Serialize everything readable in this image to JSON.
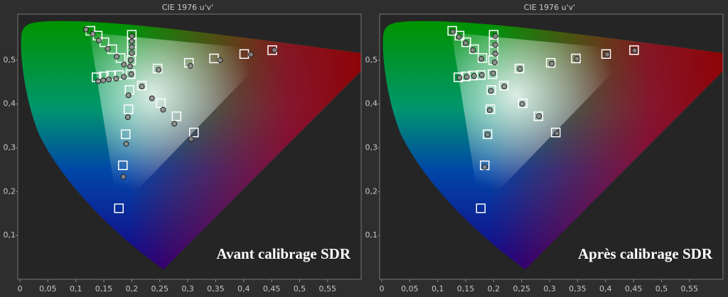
{
  "chart_data": [
    {
      "type": "scatter",
      "title": "CIE 1976 u'v'",
      "annotation": "Avant calibrage SDR",
      "xlim": [
        0,
        0.61
      ],
      "ylim": [
        0,
        0.605
      ],
      "xticks": [
        0,
        {
          "value": 0.05,
          "label": "0,05"
        },
        {
          "value": 0.1,
          "label": "0,1"
        },
        {
          "value": 0.15,
          "label": "0,15"
        },
        {
          "value": 0.2,
          "label": "0,2"
        },
        {
          "value": 0.25,
          "label": "0,25"
        },
        {
          "value": 0.3,
          "label": "0,3"
        },
        {
          "value": 0.35,
          "label": "0,35"
        },
        {
          "value": 0.4,
          "label": "0,4"
        },
        {
          "value": 0.45,
          "label": "0,45"
        },
        {
          "value": 0.5,
          "label": "0,5"
        },
        {
          "value": 0.55,
          "label": "0,55"
        }
      ],
      "yticks": [
        {
          "value": 0.1,
          "label": "0,1"
        },
        {
          "value": 0.2,
          "label": "0,2"
        },
        {
          "value": 0.3,
          "label": "0,3"
        },
        {
          "value": 0.4,
          "label": "0,4"
        },
        {
          "value": 0.5,
          "label": "0,5"
        }
      ],
      "series": [
        {
          "marker": "square",
          "color": "#ffffff",
          "x": [
            0.198,
            0.246,
            0.302,
            0.347,
            0.401,
            0.451,
            0.126,
            0.139,
            0.151,
            0.165,
            0.18,
            0.2,
            0.2,
            0.2,
            0.199,
            0.137,
            0.15,
            0.163,
            0.177,
            0.196,
            0.194,
            0.189,
            0.184,
            0.177,
            0.218,
            0.252,
            0.28,
            0.311
          ],
          "values": [
            0.468,
            0.481,
            0.494,
            0.504,
            0.514,
            0.523,
            0.567,
            0.556,
            0.541,
            0.525,
            0.505,
            0.558,
            0.54,
            0.52,
            0.5,
            0.461,
            0.463,
            0.465,
            0.466,
            0.432,
            0.388,
            0.331,
            0.26,
            0.162,
            0.442,
            0.402,
            0.372,
            0.335
          ]
        },
        {
          "marker": "circle",
          "color": "#8a8a8a",
          "x": [
            0.199,
            0.248,
            0.305,
            0.358,
            0.413,
            0.455,
            0.118,
            0.13,
            0.141,
            0.157,
            0.173,
            0.186,
            0.2,
            0.2,
            0.2,
            0.2,
            0.198,
            0.197,
            0.14,
            0.149,
            0.159,
            0.172,
            0.186,
            0.194,
            0.193,
            0.19,
            0.185,
            0.218,
            0.236,
            0.256,
            0.276,
            0.306
          ],
          "values": [
            0.468,
            0.478,
            0.487,
            0.5,
            0.513,
            0.523,
            0.57,
            0.56,
            0.545,
            0.526,
            0.508,
            0.49,
            0.555,
            0.543,
            0.53,
            0.516,
            0.5,
            0.486,
            0.452,
            0.454,
            0.456,
            0.458,
            0.462,
            0.42,
            0.37,
            0.309,
            0.234,
            0.44,
            0.413,
            0.387,
            0.355,
            0.32
          ]
        }
      ]
    },
    {
      "type": "scatter",
      "title": "CIE 1976 u'v'",
      "annotation": "Après calibrage SDR",
      "xlim": [
        0,
        0.61
      ],
      "ylim": [
        0,
        0.605
      ],
      "xticks": [
        0,
        {
          "value": 0.05,
          "label": "0,05"
        },
        {
          "value": 0.1,
          "label": "0,1"
        },
        {
          "value": 0.15,
          "label": "0,15"
        },
        {
          "value": 0.2,
          "label": "0,2"
        },
        {
          "value": 0.25,
          "label": "0,25"
        },
        {
          "value": 0.3,
          "label": "0,3"
        },
        {
          "value": 0.35,
          "label": "0,35"
        },
        {
          "value": 0.4,
          "label": "0,4"
        },
        {
          "value": 0.45,
          "label": "0,45"
        },
        {
          "value": 0.5,
          "label": "0,5"
        },
        {
          "value": 0.55,
          "label": "0,55"
        }
      ],
      "yticks": [
        {
          "value": 0.1,
          "label": "0,1"
        },
        {
          "value": 0.2,
          "label": "0,2"
        },
        {
          "value": 0.3,
          "label": "0,3"
        },
        {
          "value": 0.4,
          "label": "0,4"
        },
        {
          "value": 0.5,
          "label": "0,5"
        }
      ],
      "series": [
        {
          "marker": "square",
          "color": "#ffffff",
          "x": [
            0.198,
            0.246,
            0.302,
            0.347,
            0.401,
            0.451,
            0.126,
            0.139,
            0.151,
            0.165,
            0.18,
            0.2,
            0.2,
            0.2,
            0.199,
            0.137,
            0.15,
            0.163,
            0.177,
            0.196,
            0.194,
            0.189,
            0.184,
            0.177,
            0.218,
            0.252,
            0.28,
            0.311
          ],
          "values": [
            0.468,
            0.481,
            0.494,
            0.504,
            0.514,
            0.523,
            0.567,
            0.556,
            0.541,
            0.525,
            0.505,
            0.558,
            0.54,
            0.52,
            0.5,
            0.461,
            0.463,
            0.465,
            0.466,
            0.432,
            0.388,
            0.331,
            0.26,
            0.162,
            0.442,
            0.402,
            0.372,
            0.335
          ]
        },
        {
          "marker": "circle",
          "color": "#8a8a8a",
          "x": [
            0.199,
            0.247,
            0.304,
            0.349,
            0.403,
            0.452,
            0.127,
            0.138,
            0.15,
            0.163,
            0.178,
            0.203,
            0.203,
            0.203,
            0.202,
            0.139,
            0.152,
            0.165,
            0.179,
            0.195,
            0.193,
            0.189,
            0.184,
            0.219,
            0.251,
            0.281,
            0.313
          ],
          "values": [
            0.47,
            0.48,
            0.492,
            0.503,
            0.513,
            0.522,
            0.565,
            0.553,
            0.539,
            0.523,
            0.503,
            0.555,
            0.535,
            0.515,
            0.495,
            0.46,
            0.462,
            0.464,
            0.466,
            0.43,
            0.386,
            0.33,
            0.256,
            0.44,
            0.4,
            0.372,
            0.333
          ]
        }
      ]
    }
  ]
}
